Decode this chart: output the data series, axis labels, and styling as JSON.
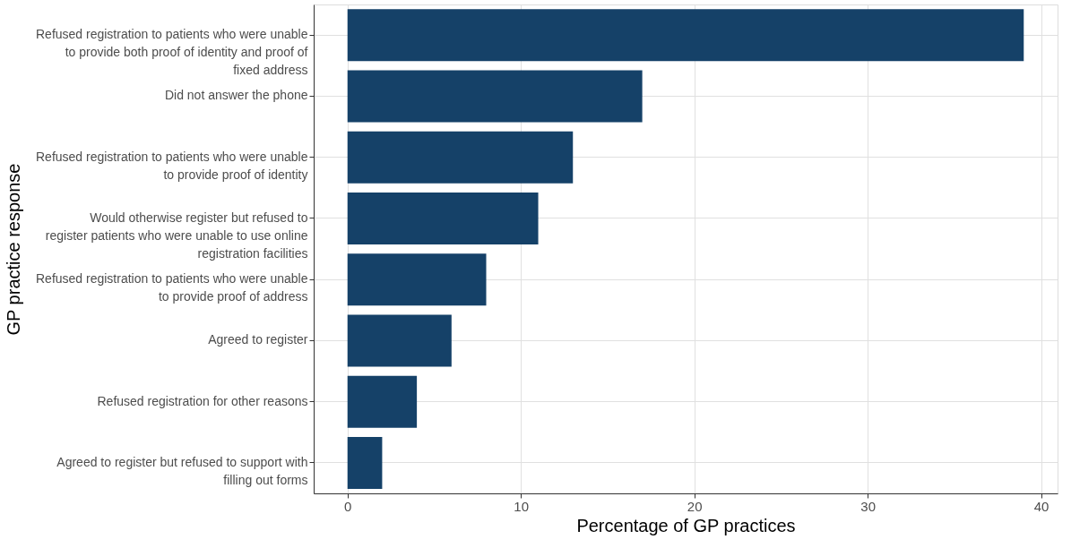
{
  "chart_data": {
    "type": "bar",
    "orientation": "horizontal",
    "xlabel": "Percentage of GP practices",
    "ylabel": "GP practice response",
    "categories": [
      "Refused registration to patients who were unable\nto provide both proof of identity and proof of\nfixed address",
      "Did not answer the phone",
      "Refused registration to patients who were unable\nto provide proof of identity",
      "Would otherwise register but refused to\nregister patients who were unable to use online\nregistration facilities",
      "Refused registration to patients who were unable\nto provide proof of address",
      "Agreed to register",
      "Refused registration for other reasons",
      "Agreed to register but refused to support with\nfilling out forms"
    ],
    "values": [
      39,
      17,
      13,
      11,
      8,
      6,
      4,
      2
    ],
    "color": "#154168",
    "xlim": [
      -1.95,
      40.95
    ],
    "xticks": [
      0,
      10,
      20,
      30,
      40
    ],
    "grid": true
  }
}
